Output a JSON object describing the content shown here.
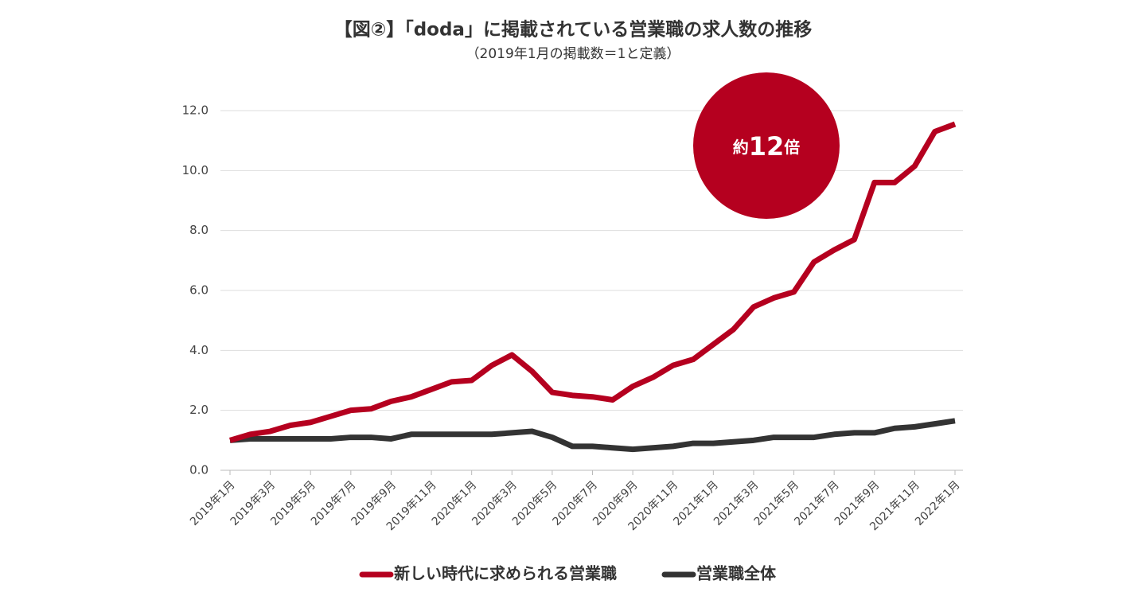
{
  "chart_data": {
    "type": "line",
    "title": "【図②】「doda」に掲載されている営業職の求人数の推移",
    "subtitle": "（2019年1月の掲載数＝1と定義）",
    "annotation": [
      "約",
      "12",
      "倍"
    ],
    "categories": [
      "2019年1月",
      null,
      "2019年3月",
      null,
      "2019年5月",
      null,
      "2019年7月",
      null,
      "2019年9月",
      null,
      "2019年11月",
      null,
      "2020年1月",
      null,
      "2020年3月",
      null,
      "2020年5月",
      null,
      "2020年7月",
      null,
      "2020年9月",
      null,
      "2020年11月",
      null,
      "2021年1月",
      null,
      "2021年3月",
      null,
      "2021年5月",
      null,
      "2021年7月",
      null,
      "2021年9月",
      null,
      "2021年11月",
      null,
      "2022年1月"
    ],
    "series": [
      {
        "name": "新しい時代に求められる営業職",
        "color": "#b5001f",
        "values": [
          1.0,
          1.2,
          1.3,
          1.5,
          1.6,
          1.8,
          2.0,
          2.05,
          2.3,
          2.45,
          2.7,
          2.95,
          3.0,
          3.5,
          3.85,
          3.3,
          2.6,
          2.5,
          2.45,
          2.35,
          2.8,
          3.1,
          3.5,
          3.7,
          4.2,
          4.7,
          5.45,
          5.75,
          5.95,
          6.95,
          7.35,
          7.7,
          9.6,
          9.6,
          10.15,
          11.3,
          11.55
        ]
      },
      {
        "name": "営業職全体",
        "color": "#333333",
        "values": [
          1.0,
          1.05,
          1.05,
          1.05,
          1.05,
          1.05,
          1.1,
          1.1,
          1.05,
          1.2,
          1.2,
          1.2,
          1.2,
          1.2,
          1.25,
          1.3,
          1.1,
          0.8,
          0.8,
          0.75,
          0.7,
          0.75,
          0.8,
          0.9,
          0.9,
          0.95,
          1.0,
          1.1,
          1.1,
          1.1,
          1.2,
          1.25,
          1.25,
          1.4,
          1.45,
          1.55,
          1.65
        ]
      }
    ],
    "ylim": [
      0,
      12
    ],
    "yticks": [
      {
        "value": 0,
        "label": "0.0"
      },
      {
        "value": 2,
        "label": "2.0"
      },
      {
        "value": 4,
        "label": "4.0"
      },
      {
        "value": 6,
        "label": "6.0"
      },
      {
        "value": 8,
        "label": "8.0"
      },
      {
        "value": 10,
        "label": "10.0"
      },
      {
        "value": 12,
        "label": "12.0"
      }
    ],
    "grid": true,
    "legend": "bottom",
    "annotation_color": "#b5001f"
  }
}
